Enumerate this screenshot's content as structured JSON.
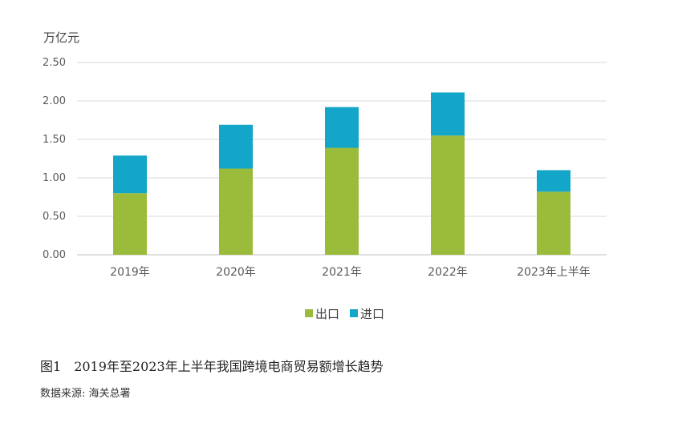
{
  "chart_data": {
    "type": "bar",
    "stacked": true,
    "categories": [
      "2019年",
      "2020年",
      "2021年",
      "2022年",
      "2023年上半年"
    ],
    "series": [
      {
        "name": "出口",
        "values": [
          0.8,
          1.12,
          1.39,
          1.55,
          0.82
        ],
        "color": "#9BBB3B"
      },
      {
        "name": "进口",
        "values": [
          0.49,
          0.57,
          0.53,
          0.56,
          0.28
        ],
        "color": "#14A6C8"
      }
    ],
    "ylabel": "万亿元",
    "ylim": [
      0,
      2.5
    ],
    "yticks": [
      "0.00",
      "0.50",
      "1.00",
      "1.50",
      "2.00",
      "2.50"
    ],
    "grid": true,
    "legend_position": "bottom"
  },
  "caption": {
    "figure_no": "图1",
    "title": "2019年至2023年上半年我国跨境电商贸易额增长趋势"
  },
  "source": "数据来源: 海关总署"
}
